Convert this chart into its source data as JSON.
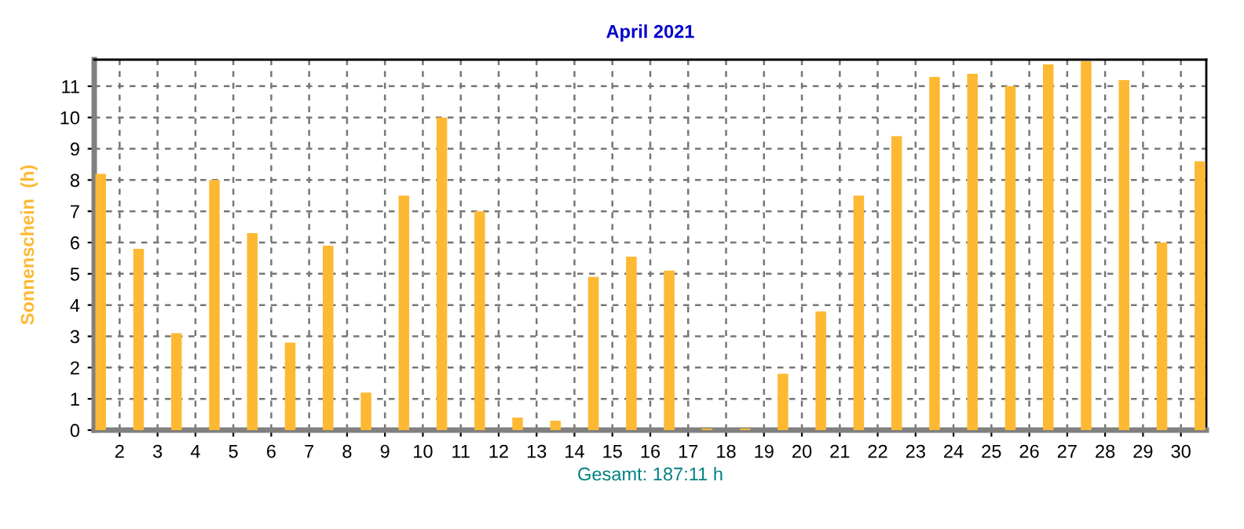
{
  "chart_data": {
    "type": "bar",
    "title": "April 2021",
    "ylabel": "Sonnenschein  (h)",
    "annotations": [
      "Gesamt: 187:11 h"
    ],
    "x": [
      1.5,
      2.5,
      3.5,
      4.5,
      5.5,
      6.5,
      7.5,
      8.5,
      9.5,
      10.5,
      11.5,
      12.5,
      13.5,
      14.5,
      15.5,
      16.5,
      17.5,
      18.5,
      19.5,
      20.5,
      21.5,
      22.5,
      23.5,
      24.5,
      25.5,
      26.5,
      27.5,
      28.5,
      29.5,
      30.5
    ],
    "values": [
      8.2,
      5.8,
      3.1,
      8.0,
      6.3,
      2.8,
      5.9,
      1.2,
      7.5,
      10.0,
      7.0,
      0.4,
      0.3,
      4.9,
      5.55,
      5.1,
      0.05,
      0.05,
      1.8,
      3.8,
      7.5,
      9.4,
      11.3,
      11.4,
      11.0,
      11.7,
      11.8,
      11.2,
      6.0,
      8.6
    ],
    "color": "#fdb933",
    "xlim": [
      1.33,
      30.67
    ],
    "xticks": [
      2,
      3,
      4,
      5,
      6,
      7,
      8,
      9,
      10,
      11,
      12,
      13,
      14,
      15,
      16,
      17,
      18,
      19,
      20,
      21,
      22,
      23,
      24,
      25,
      26,
      27,
      28,
      29,
      30
    ],
    "ylim": [
      0,
      11.85
    ],
    "yticks": [
      0,
      1,
      2,
      3,
      4,
      5,
      6,
      7,
      8,
      9,
      10,
      11
    ],
    "grid": true,
    "legend": false
  }
}
